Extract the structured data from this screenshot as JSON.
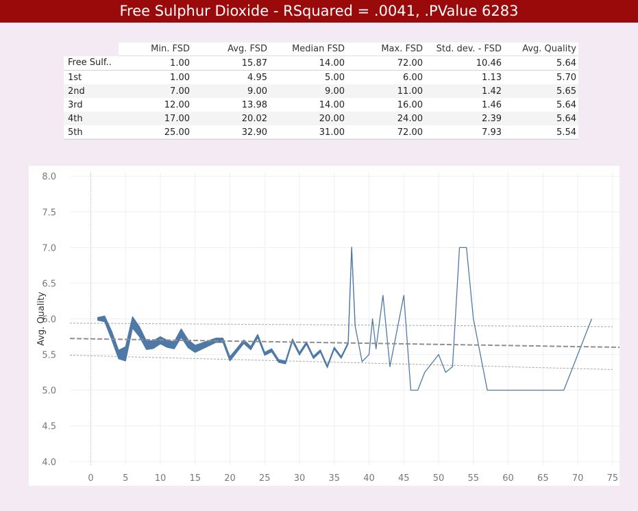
{
  "title": "Free Sulphur Dioxide  - RSquared = .0041, .PValue 6283",
  "table": {
    "columns": [
      "Min. FSD",
      "Avg. FSD",
      "Median FSD",
      "Max. FSD",
      "Std. dev. - FSD",
      "Avg. Quality"
    ],
    "rows": [
      {
        "label": "Free Sulf..",
        "cells": [
          "1.00",
          "15.87",
          "14.00",
          "72.00",
          "10.46",
          "5.64"
        ]
      },
      {
        "label": "1st",
        "cells": [
          "1.00",
          "4.95",
          "5.00",
          "6.00",
          "1.13",
          "5.70"
        ]
      },
      {
        "label": "2nd",
        "cells": [
          "7.00",
          "9.00",
          "9.00",
          "11.00",
          "1.42",
          "5.65"
        ]
      },
      {
        "label": "3rd",
        "cells": [
          "12.00",
          "13.98",
          "14.00",
          "16.00",
          "1.46",
          "5.64"
        ]
      },
      {
        "label": "4th",
        "cells": [
          "17.00",
          "20.02",
          "20.00",
          "24.00",
          "2.39",
          "5.64"
        ]
      },
      {
        "label": "5th",
        "cells": [
          "25.00",
          "32.90",
          "31.00",
          "72.00",
          "7.93",
          "5.54"
        ]
      }
    ]
  },
  "chart_data": {
    "type": "line",
    "ylabel": "Avg. Quality",
    "xlabel": "",
    "xlim": [
      -3,
      76
    ],
    "ylim": [
      3.95,
      8.05
    ],
    "xticks": [
      0,
      5,
      10,
      15,
      20,
      25,
      30,
      35,
      40,
      45,
      50,
      55,
      60,
      65,
      70,
      75
    ],
    "yticks": [
      4.0,
      4.5,
      5.0,
      5.5,
      6.0,
      6.5,
      7.0,
      7.5,
      8.0
    ],
    "x_reference_line": 0,
    "line_color": "#4e79a7",
    "trend_color": "#8e8e8e",
    "series": [
      {
        "points": [
          [
            1,
            6.0
          ],
          [
            2,
            6.0
          ],
          [
            3,
            5.77
          ],
          [
            4,
            5.5
          ],
          [
            5,
            5.51
          ],
          [
            6,
            5.95
          ],
          [
            7,
            5.82
          ],
          [
            8,
            5.63
          ],
          [
            9,
            5.64
          ],
          [
            10,
            5.7
          ],
          [
            11,
            5.65
          ],
          [
            12,
            5.63
          ],
          [
            13,
            5.8
          ],
          [
            14,
            5.65
          ],
          [
            15,
            5.58
          ],
          [
            16,
            5.62
          ],
          [
            17,
            5.66
          ],
          [
            18,
            5.7
          ],
          [
            19,
            5.7
          ],
          [
            20,
            5.44
          ],
          [
            21,
            5.56
          ],
          [
            22,
            5.68
          ],
          [
            23,
            5.59
          ],
          [
            24,
            5.76
          ],
          [
            25,
            5.51
          ],
          [
            26,
            5.56
          ],
          [
            27,
            5.41
          ],
          [
            28,
            5.39
          ],
          [
            29,
            5.7
          ],
          [
            30,
            5.51
          ],
          [
            31,
            5.66
          ],
          [
            32,
            5.46
          ],
          [
            33,
            5.55
          ],
          [
            34,
            5.33
          ],
          [
            35,
            5.59
          ],
          [
            36,
            5.46
          ],
          [
            37,
            5.66
          ],
          [
            37.5,
            7.0
          ],
          [
            38,
            5.9
          ],
          [
            39,
            5.4
          ],
          [
            40,
            5.5
          ],
          [
            40.5,
            6.0
          ],
          [
            41,
            5.58
          ],
          [
            42,
            6.33
          ],
          [
            43,
            5.33
          ],
          [
            45,
            6.33
          ],
          [
            46,
            5.0
          ],
          [
            47,
            5.0
          ],
          [
            48,
            5.25
          ],
          [
            50,
            5.5
          ],
          [
            51,
            5.25
          ],
          [
            52,
            5.33
          ],
          [
            53,
            7.0
          ],
          [
            54,
            7.0
          ],
          [
            55,
            6.0
          ],
          [
            57,
            5.0
          ],
          [
            68,
            5.0
          ],
          [
            72,
            6.0
          ]
        ],
        "band_halfwidth": [
          [
            1,
            0.02
          ],
          [
            3,
            0.06
          ],
          [
            4,
            0.06
          ],
          [
            5,
            0.1
          ],
          [
            6,
            0.08
          ],
          [
            7,
            0.07
          ],
          [
            8,
            0.06
          ],
          [
            10,
            0.05
          ],
          [
            12,
            0.05
          ],
          [
            13,
            0.06
          ],
          [
            15,
            0.05
          ],
          [
            18,
            0.03
          ],
          [
            19,
            0.03
          ],
          [
            20,
            0.03
          ],
          [
            22,
            0.025
          ],
          [
            25,
            0.022
          ],
          [
            28,
            0.02
          ],
          [
            31,
            0.018
          ],
          [
            34,
            0.015
          ],
          [
            37,
            0.012
          ],
          [
            38,
            0.0
          ]
        ]
      }
    ],
    "trend_line": {
      "intercept": 5.72,
      "slope": -0.00156
    },
    "confidence_band": {
      "upper": [
        [
          -3,
          5.94
        ],
        [
          75,
          5.89
        ]
      ],
      "lower": [
        [
          -3,
          5.49
        ],
        [
          75,
          5.29
        ]
      ]
    }
  }
}
